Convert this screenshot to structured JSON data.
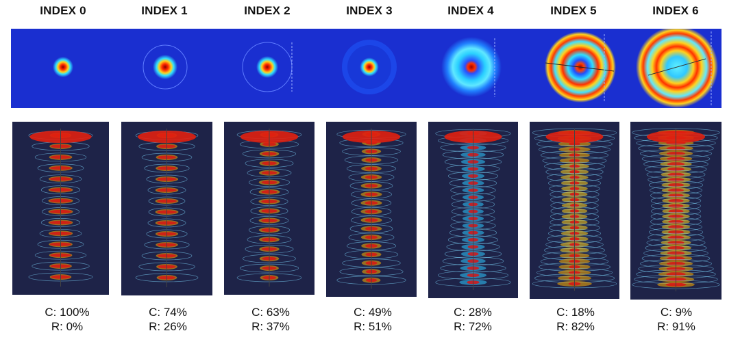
{
  "indices": [
    {
      "label": "INDEX 0",
      "c": "C: 100%",
      "r": "R: 0%"
    },
    {
      "label": "INDEX 1",
      "c": "C: 74%",
      "r": "R: 26%"
    },
    {
      "label": "INDEX 2",
      "c": "C: 63%",
      "r": "R: 37%"
    },
    {
      "label": "INDEX 3",
      "c": "C: 49%",
      "r": "R: 51%"
    },
    {
      "label": "INDEX 4",
      "c": "C: 28%",
      "r": "R: 72%"
    },
    {
      "label": "INDEX 5",
      "c": "C: 18%",
      "r": "R: 82%"
    },
    {
      "label": "INDEX 6",
      "c": "C: 9%",
      "r": "R: 91%"
    }
  ],
  "colors": {
    "background": "#1a2fd0",
    "panel_dark": "#141a3c",
    "hot": "#d81414",
    "warm": "#ffd21e",
    "cool": "#30c8ff"
  }
}
